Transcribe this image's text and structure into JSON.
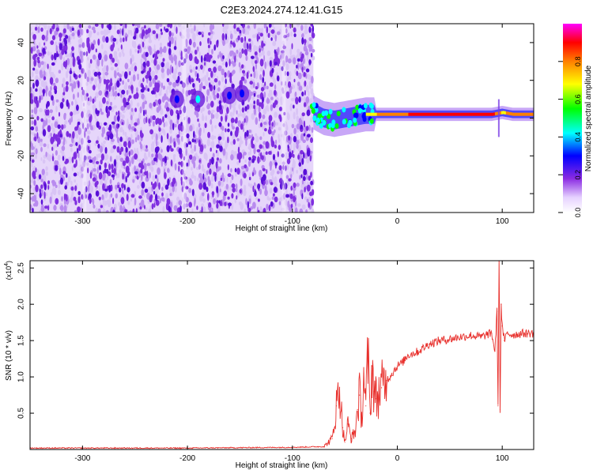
{
  "title": "C2E3.2024.274.12.41.G15",
  "chart_data": [
    {
      "type": "heatmap",
      "xlabel": "Height of straight line (km)",
      "ylabel": "Frequency (Hz)",
      "xlim": [
        -350,
        130
      ],
      "ylim": [
        -50,
        50
      ],
      "xticks": [
        -300,
        -200,
        -100,
        0,
        100
      ],
      "yticks": [
        -40,
        -20,
        0,
        20,
        40
      ],
      "xtick_labels": [
        "-300",
        "-200",
        "-100",
        "0",
        "100"
      ],
      "ytick_labels": [
        "-40",
        "-20",
        "0",
        "20",
        "40"
      ],
      "colorbar": {
        "label": "Normalized spectral amplitude",
        "range": [
          0,
          1
        ],
        "ticks": [
          0.0,
          0.2,
          0.4,
          0.6,
          0.8
        ],
        "tick_labels": [
          "0.0",
          "0.2",
          "0.4",
          "0.6",
          "0.8"
        ],
        "colormap": [
          "#ffffff",
          "#8a2be2",
          "#0000ff",
          "#00ffff",
          "#00ff00",
          "#ffff00",
          "#ff8000",
          "#ff0000",
          "#ff00ff"
        ]
      },
      "noise_region": {
        "x_from": -350,
        "x_to": -80,
        "y_from": -50,
        "y_to": 50,
        "typical_amplitude": 0.1
      },
      "bursts": [
        {
          "x": -210,
          "y": 10,
          "amplitude": 0.25
        },
        {
          "x": -190,
          "y": 10,
          "amplitude": 0.3
        },
        {
          "x": -160,
          "y": 12,
          "amplitude": 0.2
        },
        {
          "x": -148,
          "y": 13,
          "amplitude": 0.25
        }
      ],
      "signal_track": {
        "x": [
          -80,
          -70,
          -60,
          -50,
          -40,
          -30,
          -20,
          -10,
          0,
          20,
          40,
          60,
          80,
          90,
          100,
          110,
          130
        ],
        "frequency": [
          3,
          0,
          -1,
          0,
          1,
          2,
          2,
          2,
          2,
          2,
          2,
          2,
          2,
          2,
          3,
          2,
          2
        ],
        "amplitude": [
          0.35,
          0.4,
          0.45,
          0.55,
          0.65,
          0.75,
          0.8,
          0.85,
          0.85,
          0.95,
          1.0,
          0.95,
          0.9,
          0.95,
          0.75,
          0.9,
          0.85
        ]
      }
    },
    {
      "type": "line",
      "xlabel": "Height of straight line (km)",
      "ylabel": "SNR (10 * v/v)",
      "y_exponent_label": "(x10",
      "y_exponent_power": "4",
      "y_exponent_close": ")",
      "xlim": [
        -350,
        130
      ],
      "ylim": [
        0,
        2.6
      ],
      "xticks": [
        -300,
        -200,
        -100,
        0,
        100
      ],
      "yticks": [
        0.5,
        1.0,
        1.5,
        2.0,
        2.5
      ],
      "xtick_labels": [
        "-300",
        "-200",
        "-100",
        "0",
        "100"
      ],
      "ytick_labels": [
        "0.5",
        "1.0",
        "1.5",
        "2.0",
        "2.5"
      ],
      "color": "#e8302c",
      "series": [
        {
          "x": [
            -350,
            -300,
            -200,
            -100,
            -70,
            -62,
            -58,
            -55,
            -52,
            -50,
            -47,
            -44,
            -40,
            -38,
            -36,
            -34,
            -32,
            -30,
            -28,
            -26,
            -24,
            -22,
            -20,
            -15,
            -10,
            -5,
            0,
            5,
            10,
            20,
            30,
            40,
            50,
            60,
            70,
            80,
            85,
            90,
            93,
            95,
            96,
            97,
            98,
            99,
            100,
            102,
            105,
            110,
            120,
            130
          ],
          "y": [
            0.02,
            0.02,
            0.02,
            0.03,
            0.04,
            0.15,
            0.6,
            0.85,
            0.3,
            0.1,
            0.35,
            0.15,
            0.25,
            0.55,
            0.75,
            0.4,
            1.05,
            0.6,
            1.3,
            0.5,
            1.15,
            0.8,
            0.7,
            0.85,
            0.95,
            1.05,
            1.15,
            1.2,
            1.3,
            1.35,
            1.45,
            1.5,
            1.52,
            1.55,
            1.57,
            1.55,
            1.58,
            1.6,
            1.35,
            1.9,
            0.6,
            2.6,
            0.55,
            2.0,
            1.7,
            1.5,
            1.6,
            1.58,
            1.6,
            1.6
          ]
        }
      ]
    }
  ]
}
